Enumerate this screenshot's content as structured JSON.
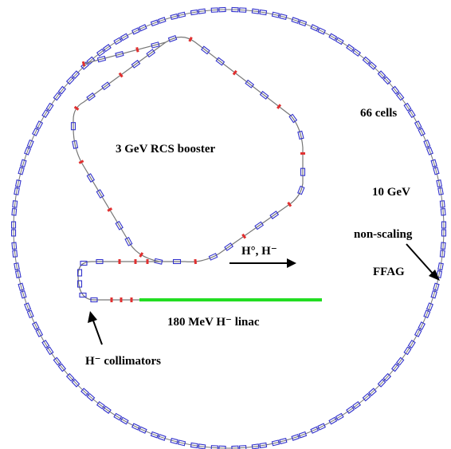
{
  "labels": {
    "booster": "3 GeV RCS booster",
    "cells": "66 cells",
    "energy": "10 GeV",
    "nonscaling": "non-scaling",
    "ffag": "FFAG",
    "hions": "H°, H⁻",
    "linac": "180 MeV H⁻ linac",
    "collimators": "H⁻ collimators"
  },
  "colors": {
    "magnet": "#3333cc",
    "quad": "#e03030",
    "beamline": "#777777",
    "linac": "#22dd22",
    "text": "#000000"
  },
  "ffag_cells": 66
}
